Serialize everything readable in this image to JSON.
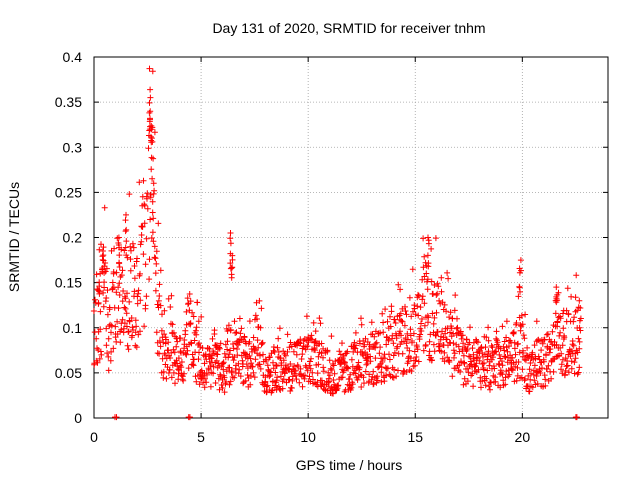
{
  "chart_data": {
    "type": "scatter",
    "title": "Day 131 of 2020, SRMTID for receiver tnhm",
    "xlabel": "GPS time / hours",
    "ylabel": "SRMTID / TECUs",
    "xlim": [
      0,
      24
    ],
    "ylim": [
      0,
      0.4
    ],
    "xticks": [
      0,
      5,
      10,
      15,
      20
    ],
    "xtick_labels": [
      "0",
      "5",
      "10",
      "15",
      "20"
    ],
    "yticks": [
      0,
      0.05,
      0.1,
      0.15,
      0.2,
      0.25,
      0.3,
      0.35,
      0.4
    ],
    "ytick_labels": [
      "0",
      "0.05",
      "0.1",
      "0.15",
      "0.2",
      "0.25",
      "0.3",
      "0.35",
      "0.4"
    ],
    "grid": true,
    "marker": "+",
    "marker_color": "#ff0000",
    "series": [
      {
        "name": "SRMTID",
        "trend": [
          [
            0.0,
            0.095
          ],
          [
            0.2,
            0.1
          ],
          [
            0.5,
            0.14
          ],
          [
            0.7,
            0.09
          ],
          [
            1.0,
            0.12
          ],
          [
            1.3,
            0.15
          ],
          [
            1.6,
            0.13
          ],
          [
            2.0,
            0.14
          ],
          [
            2.3,
            0.16
          ],
          [
            2.5,
            0.22
          ],
          [
            2.65,
            0.3
          ],
          [
            2.8,
            0.19
          ],
          [
            3.0,
            0.12
          ],
          [
            3.3,
            0.06
          ],
          [
            3.6,
            0.08
          ],
          [
            4.0,
            0.05
          ],
          [
            4.4,
            0.1
          ],
          [
            4.8,
            0.07
          ],
          [
            5.2,
            0.05
          ],
          [
            5.6,
            0.07
          ],
          [
            6.0,
            0.045
          ],
          [
            6.4,
            0.07
          ],
          [
            6.8,
            0.08
          ],
          [
            7.2,
            0.055
          ],
          [
            7.6,
            0.09
          ],
          [
            8.0,
            0.045
          ],
          [
            8.5,
            0.055
          ],
          [
            9.0,
            0.05
          ],
          [
            9.5,
            0.06
          ],
          [
            10.0,
            0.065
          ],
          [
            10.5,
            0.06
          ],
          [
            11.0,
            0.05
          ],
          [
            11.5,
            0.045
          ],
          [
            12.0,
            0.055
          ],
          [
            12.5,
            0.06
          ],
          [
            13.0,
            0.065
          ],
          [
            13.5,
            0.07
          ],
          [
            14.0,
            0.08
          ],
          [
            14.5,
            0.085
          ],
          [
            15.0,
            0.095
          ],
          [
            15.4,
            0.125
          ],
          [
            15.8,
            0.11
          ],
          [
            16.2,
            0.1
          ],
          [
            16.6,
            0.09
          ],
          [
            17.0,
            0.07
          ],
          [
            17.5,
            0.06
          ],
          [
            18.0,
            0.06
          ],
          [
            18.5,
            0.055
          ],
          [
            19.0,
            0.06
          ],
          [
            19.5,
            0.065
          ],
          [
            19.9,
            0.08
          ],
          [
            20.3,
            0.05
          ],
          [
            20.7,
            0.06
          ],
          [
            21.2,
            0.065
          ],
          [
            21.6,
            0.075
          ],
          [
            22.0,
            0.085
          ],
          [
            22.4,
            0.08
          ],
          [
            22.7,
            0.09
          ]
        ],
        "spikes": [
          [
            0.25,
            0.16
          ],
          [
            0.45,
            0.185
          ],
          [
            1.2,
            0.2
          ],
          [
            1.5,
            0.225
          ],
          [
            2.6,
            0.355
          ],
          [
            2.65,
            0.34
          ],
          [
            2.7,
            0.32
          ],
          [
            2.75,
            0.265
          ],
          [
            6.4,
            0.205
          ],
          [
            6.45,
            0.18
          ],
          [
            15.6,
            0.2
          ],
          [
            19.9,
            0.175
          ],
          [
            21.6,
            0.145
          ],
          [
            22.7,
            0.13
          ]
        ],
        "zero_points": [
          0.98,
          1.05,
          4.42,
          4.48,
          22.5,
          22.55
        ]
      }
    ]
  }
}
